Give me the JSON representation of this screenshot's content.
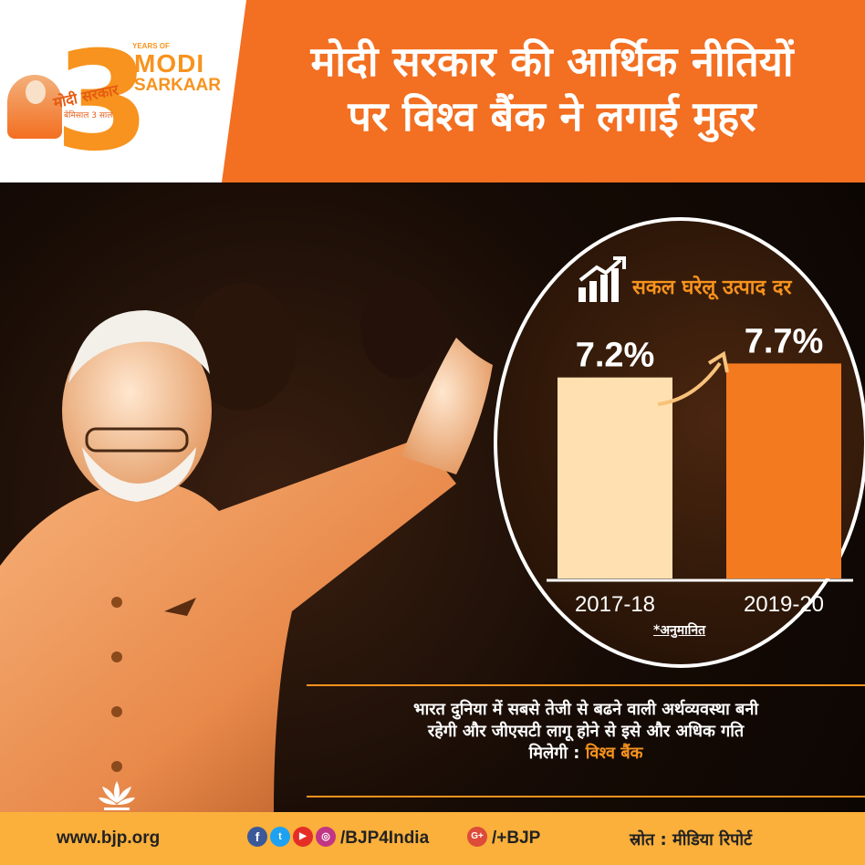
{
  "logo": {
    "years_of": "YEARS OF",
    "modi": "MODI",
    "sarkaar": "SARKAAR",
    "number": "3",
    "hindi_title": "मोदी सरकार",
    "hindi_sub": "बेमिसाल 3 साल"
  },
  "header": {
    "headline_line1": "मोदी सरकार की आर्थिक नीतियों",
    "headline_line2": "पर विश्व बैंक ने लगाई मुहर"
  },
  "chart_data": {
    "type": "bar",
    "title": "सकल घरेलू उत्पाद दर",
    "categories": [
      "2017-18",
      "2019-20"
    ],
    "values": [
      7.2,
      7.7
    ],
    "value_labels": [
      "7.2%",
      "7.7%"
    ],
    "unit": "%",
    "colors": [
      "#ffe0b0",
      "#f47a1f"
    ],
    "note": "*अनुमानित"
  },
  "quote": {
    "line1": "भारत दुनिया में सबसे तेजी से बढने वाली अर्थव्यवस्था बनी",
    "line2": "रहेगी और जीएसटी लागू होने से इसे और अधिक गति",
    "line3_prefix": "मिलेगी : ",
    "source": "विश्व बैंक"
  },
  "footer": {
    "website": "www.bjp.org",
    "handle": "/BJP4India",
    "gplus": "/+BJP",
    "source_label": "स्रोत : मीडिया रिपोर्ट"
  },
  "colors": {
    "header_orange": "#f36f21",
    "footer_yellow": "#fbb03b",
    "accent_orange": "#f7931e"
  }
}
